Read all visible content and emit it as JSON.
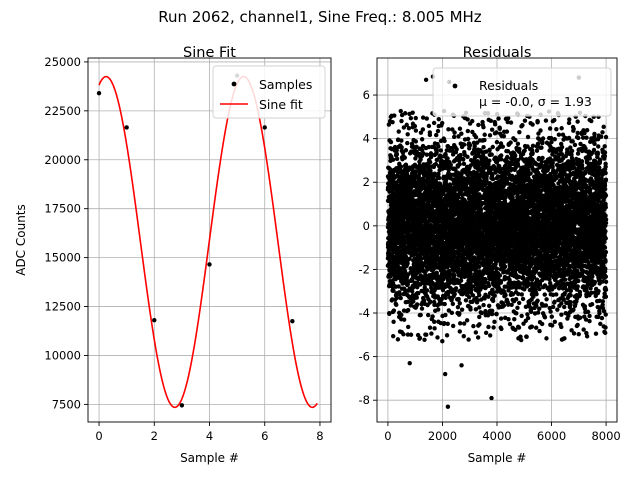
{
  "suptitle": "Run 2062, channel1, Sine Freq.: 8.005 MHz",
  "chart_data": [
    {
      "type": "scatter+line",
      "title": "Sine Fit",
      "xlabel": "Sample #",
      "ylabel": "ADC Counts",
      "xlim": [
        -0.4,
        8.4
      ],
      "ylim": [
        6600,
        25200
      ],
      "xticks": [
        0,
        2,
        4,
        6,
        8
      ],
      "yticks": [
        7500,
        10000,
        12500,
        15000,
        17500,
        20000,
        22500,
        25000
      ],
      "grid": true,
      "legend": {
        "placement": "top-right",
        "entries": [
          "Samples",
          "Sine fit"
        ]
      },
      "series": [
        {
          "name": "Samples",
          "kind": "scatter",
          "color": "#000000",
          "x": [
            0,
            1,
            2,
            3,
            4,
            5,
            6,
            7
          ],
          "y": [
            23400,
            21650,
            11800,
            7450,
            14650,
            24300,
            21650,
            11750
          ]
        },
        {
          "name": "Sine fit",
          "kind": "line",
          "color": "#ff0000",
          "model": {
            "amplitude": 8450,
            "offset": 15800,
            "period_samples": 4.98,
            "phase_rad": 1.25
          },
          "x_range": [
            0,
            7.9
          ]
        }
      ]
    },
    {
      "type": "scatter",
      "title": "Residuals",
      "xlabel": "Sample #",
      "xlim": [
        -400,
        8400
      ],
      "ylim": [
        -9,
        7.7
      ],
      "xticks": [
        0,
        2000,
        4000,
        6000,
        8000
      ],
      "yticks": [
        -8,
        -6,
        -4,
        -2,
        0,
        2,
        4,
        6
      ],
      "grid": true,
      "legend": {
        "placement": "top-right",
        "entries": [
          "Residuals",
          "μ = -0.0, σ = 1.93"
        ]
      },
      "series": [
        {
          "name": "Residuals",
          "kind": "scatter",
          "color": "#000000",
          "count": 8000,
          "mean": 0.0,
          "std": 1.93,
          "x_range": [
            0,
            8000
          ],
          "outliers": [
            [
              1400,
              6.7
            ],
            [
              1650,
              6.85
            ],
            [
              2250,
              6.6
            ],
            [
              4550,
              6.5
            ],
            [
              7000,
              6.8
            ],
            [
              2100,
              -6.8
            ],
            [
              2200,
              -8.3
            ],
            [
              3800,
              -7.9
            ],
            [
              800,
              -6.3
            ],
            [
              2700,
              -6.4
            ]
          ]
        }
      ]
    }
  ]
}
